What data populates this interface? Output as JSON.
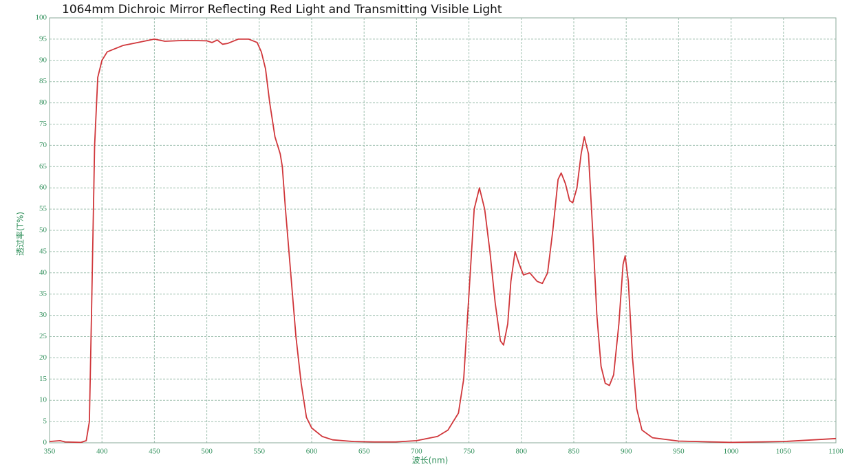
{
  "chart_data": {
    "type": "line",
    "title": "1064mm Dichroic Mirror Reflecting Red Light and Transmitting Visible Light",
    "x_label": "波长(nm)",
    "y_label": "透过率(T%)",
    "color": "#d0363a",
    "x": [
      350,
      360,
      365,
      380,
      385,
      388,
      390,
      393,
      396,
      400,
      405,
      410,
      420,
      430,
      440,
      450,
      460,
      480,
      500,
      505,
      510,
      515,
      520,
      530,
      540,
      548,
      552,
      556,
      560,
      565,
      570,
      572,
      575,
      580,
      585,
      590,
      595,
      600,
      610,
      620,
      640,
      660,
      680,
      700,
      720,
      730,
      740,
      745,
      750,
      755,
      760,
      765,
      770,
      775,
      780,
      783,
      787,
      790,
      794,
      798,
      802,
      808,
      815,
      820,
      825,
      830,
      835,
      838,
      842,
      846,
      849,
      853,
      857,
      860,
      864,
      868,
      872,
      876,
      880,
      884,
      888,
      893,
      897,
      899,
      902,
      906,
      910,
      915,
      925,
      950,
      1000,
      1050,
      1100
    ],
    "values": [
      0.3,
      0.5,
      0.2,
      0.1,
      0.5,
      5,
      30,
      70,
      86,
      90,
      92,
      92.5,
      93.5,
      94,
      94.5,
      95,
      94.5,
      94.7,
      94.6,
      94.2,
      94.8,
      93.8,
      94,
      95,
      95,
      94.2,
      92,
      88,
      80,
      72,
      68,
      65,
      55,
      40,
      25,
      14,
      6,
      3.5,
      1.5,
      0.7,
      0.3,
      0.2,
      0.2,
      0.5,
      1.5,
      3,
      7,
      15,
      35,
      55,
      60,
      55,
      45,
      33,
      24,
      23,
      28,
      38,
      45,
      42,
      39.5,
      40,
      38,
      37.5,
      40,
      50,
      62,
      63.5,
      61,
      57,
      56.5,
      60,
      68,
      72,
      68,
      50,
      30,
      18,
      14,
      13.5,
      16,
      28,
      42,
      44,
      38,
      20,
      8,
      3,
      1.2,
      0.4,
      0.1,
      0.3,
      1
    ],
    "xlim": [
      350,
      1100
    ],
    "xticks": [
      350,
      400,
      450,
      500,
      550,
      600,
      650,
      700,
      750,
      800,
      850,
      900,
      950,
      1000,
      1050,
      1100
    ],
    "ylim": [
      0,
      100
    ],
    "yticks": [
      0,
      5,
      10,
      15,
      20,
      25,
      30,
      35,
      40,
      45,
      50,
      55,
      60,
      65,
      70,
      75,
      80,
      85,
      90,
      95,
      100
    ],
    "grid": true
  }
}
